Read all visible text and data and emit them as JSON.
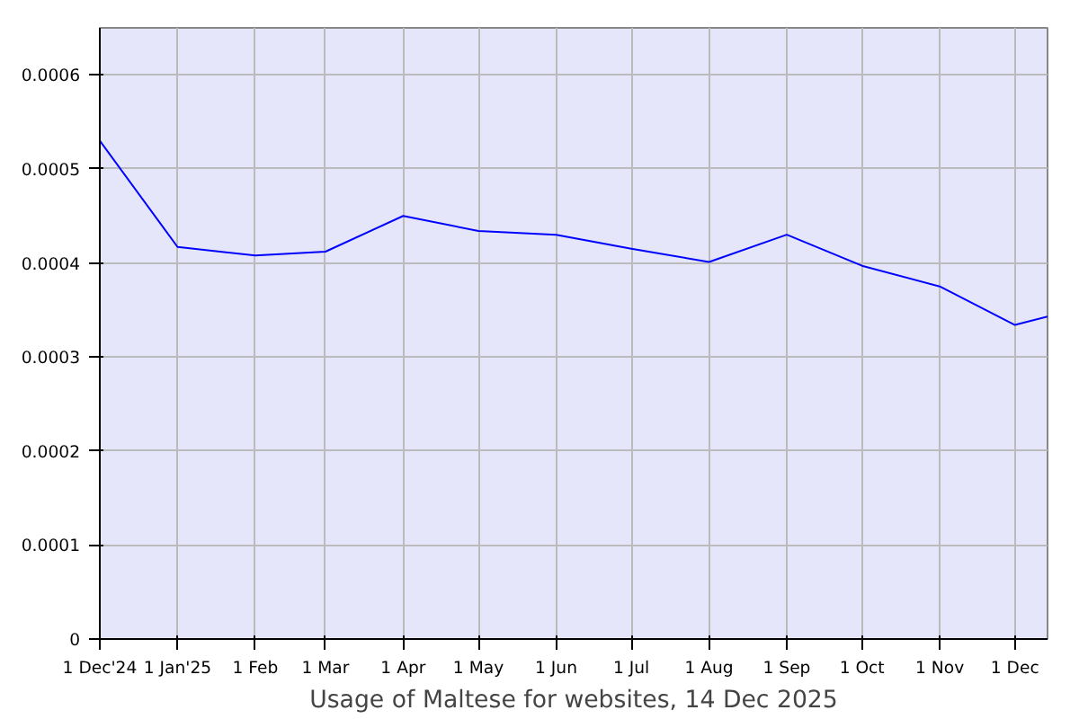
{
  "chart_data": {
    "type": "line",
    "xlabel": "Usage of Maltese for websites, 14 Dec 2025",
    "x": [
      "2024-12-01",
      "2025-01-01",
      "2025-02-01",
      "2025-03-01",
      "2025-04-01",
      "2025-05-01",
      "2025-06-01",
      "2025-07-01",
      "2025-08-01",
      "2025-09-01",
      "2025-10-01",
      "2025-11-01",
      "2025-12-01",
      "2025-12-14"
    ],
    "series": [
      {
        "color": "#0000ff",
        "values": [
          0.00053,
          0.000417,
          0.000408,
          0.000412,
          0.00045,
          0.000434,
          0.00043,
          0.000415,
          0.000401,
          0.00043,
          0.000397,
          0.000375,
          0.000334,
          0.000343
        ]
      }
    ],
    "xlim": [
      "2024-12-01",
      "2025-12-14"
    ],
    "xticks": [
      {
        "value": "2024-12-01",
        "label": "1 Dec'24"
      },
      {
        "value": "2025-01-01",
        "label": "1 Jan'25"
      },
      {
        "value": "2025-02-01",
        "label": "1 Feb"
      },
      {
        "value": "2025-03-01",
        "label": "1 Mar"
      },
      {
        "value": "2025-04-01",
        "label": "1 Apr"
      },
      {
        "value": "2025-05-01",
        "label": "1 May"
      },
      {
        "value": "2025-06-01",
        "label": "1 Jun"
      },
      {
        "value": "2025-07-01",
        "label": "1 Jul"
      },
      {
        "value": "2025-08-01",
        "label": "1 Aug"
      },
      {
        "value": "2025-09-01",
        "label": "1 Sep"
      },
      {
        "value": "2025-10-01",
        "label": "1 Oct"
      },
      {
        "value": "2025-11-01",
        "label": "1 Nov"
      },
      {
        "value": "2025-12-01",
        "label": "1 Dec"
      }
    ],
    "ylim": [
      0,
      0.00065
    ],
    "yticks": [
      0,
      0.0001,
      0.0002,
      0.0003,
      0.0004,
      0.0005,
      0.0006
    ],
    "grid": true,
    "marker": "none",
    "line_style": "solid"
  }
}
